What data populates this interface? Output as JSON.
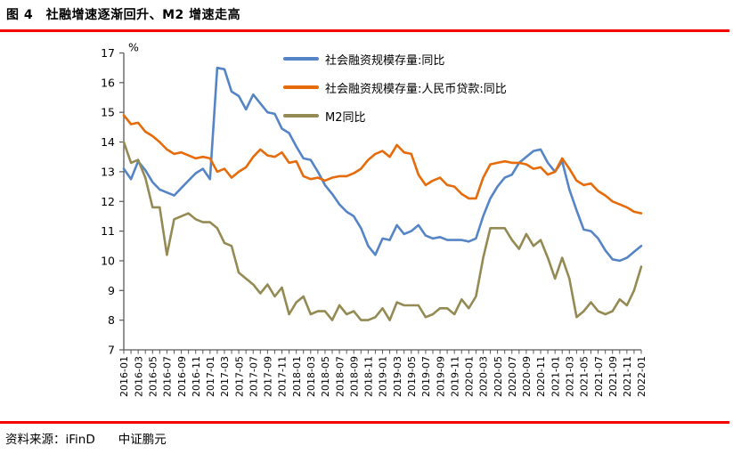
{
  "title": "图 4　社融增速逐渐回升、M2 增速走高",
  "footer": {
    "source": "资料来源：iFinD",
    "brand": "中证鹏元"
  },
  "accent_rule_color": "#f40000",
  "axis_color": "#595959",
  "chart_data": {
    "type": "line",
    "title": "",
    "unit_label": "%",
    "xlabel": "",
    "ylabel": "%",
    "ylim": [
      7,
      17
    ],
    "grid": false,
    "legend_position": "top-center",
    "yticks": [
      7,
      8,
      9,
      10,
      11,
      12,
      13,
      14,
      15,
      16,
      17
    ],
    "x_labels": [
      "2016-01",
      "2016-03",
      "2016-05",
      "2016-07",
      "2016-09",
      "2016-11",
      "2017-01",
      "2017-03",
      "2017-05",
      "2017-07",
      "2017-09",
      "2017-11",
      "2018-01",
      "2018-03",
      "2018-05",
      "2018-07",
      "2018-09",
      "2018-11",
      "2019-01",
      "2019-03",
      "2019-05",
      "2019-07",
      "2019-09",
      "2019-11",
      "2020-01",
      "2020-03",
      "2020-05",
      "2020-07",
      "2020-09",
      "2020-11",
      "2021-01",
      "2021-03",
      "2021-05",
      "2021-07",
      "2021-09",
      "2021-11",
      "2022-01"
    ],
    "x_label_every_n_months": 2,
    "series": [
      {
        "name": "社会融资规模存量:同比",
        "color": "#5585c6",
        "values": [
          13.1,
          12.75,
          13.35,
          13.05,
          12.65,
          12.4,
          12.3,
          12.2,
          12.45,
          12.7,
          12.95,
          13.1,
          12.75,
          16.5,
          16.45,
          15.7,
          15.55,
          15.1,
          15.6,
          15.3,
          15.0,
          14.95,
          14.45,
          14.3,
          13.85,
          13.45,
          13.4,
          13.0,
          12.55,
          12.25,
          11.9,
          11.65,
          11.5,
          11.1,
          10.5,
          10.2,
          10.75,
          10.7,
          11.2,
          10.9,
          11.0,
          11.2,
          10.85,
          10.75,
          10.8,
          10.7,
          10.7,
          10.7,
          10.65,
          10.75,
          11.5,
          12.1,
          12.5,
          12.8,
          12.9,
          13.3,
          13.5,
          13.7,
          13.75,
          13.3,
          13.0,
          13.35,
          12.4,
          11.7,
          11.05,
          11.0,
          10.75,
          10.35,
          10.05,
          10.0,
          10.1,
          10.3,
          10.5
        ]
      },
      {
        "name": "社会融资规模存量:人民币贷款:同比",
        "color": "#e66b0a",
        "values": [
          14.9,
          14.6,
          14.65,
          14.35,
          14.2,
          14.0,
          13.75,
          13.6,
          13.65,
          13.55,
          13.45,
          13.5,
          13.45,
          13.0,
          13.1,
          12.8,
          13.0,
          13.15,
          13.5,
          13.75,
          13.55,
          13.5,
          13.65,
          13.3,
          13.35,
          12.85,
          12.75,
          12.8,
          12.7,
          12.8,
          12.85,
          12.85,
          12.95,
          13.1,
          13.4,
          13.6,
          13.7,
          13.5,
          13.9,
          13.65,
          13.6,
          12.9,
          12.55,
          12.7,
          12.8,
          12.55,
          12.5,
          12.25,
          12.1,
          12.1,
          12.8,
          13.25,
          13.3,
          13.35,
          13.3,
          13.3,
          13.25,
          13.1,
          13.15,
          12.9,
          13.0,
          13.45,
          13.1,
          12.7,
          12.55,
          12.6,
          12.35,
          12.2,
          12.0,
          11.9,
          11.8,
          11.65,
          11.6
        ]
      },
      {
        "name": "M2同比",
        "color": "#948a54",
        "values": [
          14.0,
          13.3,
          13.4,
          12.8,
          11.8,
          11.8,
          10.2,
          11.4,
          11.5,
          11.6,
          11.4,
          11.3,
          11.3,
          11.1,
          10.6,
          10.5,
          9.6,
          9.4,
          9.2,
          8.9,
          9.2,
          8.8,
          9.1,
          8.2,
          8.6,
          8.8,
          8.2,
          8.3,
          8.3,
          8.0,
          8.5,
          8.2,
          8.3,
          8.0,
          8.0,
          8.1,
          8.4,
          8.0,
          8.6,
          8.5,
          8.5,
          8.5,
          8.1,
          8.2,
          8.4,
          8.4,
          8.2,
          8.7,
          8.4,
          8.8,
          10.1,
          11.1,
          11.1,
          11.1,
          10.7,
          10.4,
          10.9,
          10.5,
          10.7,
          10.1,
          9.4,
          10.1,
          9.4,
          8.1,
          8.3,
          8.6,
          8.3,
          8.2,
          8.3,
          8.7,
          8.5,
          9.0,
          9.8
        ]
      }
    ]
  }
}
